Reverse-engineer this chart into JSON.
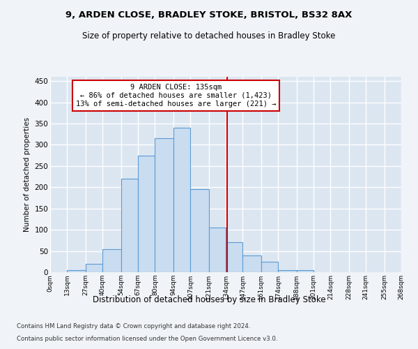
{
  "title": "9, ARDEN CLOSE, BRADLEY STOKE, BRISTOL, BS32 8AX",
  "subtitle": "Size of property relative to detached houses in Bradley Stoke",
  "xlabel": "Distribution of detached houses by size in Bradley Stoke",
  "ylabel": "Number of detached properties",
  "footnote1": "Contains HM Land Registry data © Crown copyright and database right 2024.",
  "footnote2": "Contains public sector information licensed under the Open Government Licence v3.0.",
  "annotation_line1": "9 ARDEN CLOSE: 135sqm",
  "annotation_line2": "← 86% of detached houses are smaller (1,423)",
  "annotation_line3": "13% of semi-detached houses are larger (221) →",
  "property_size": 135,
  "bin_edges": [
    0,
    13,
    27,
    40,
    54,
    67,
    80,
    94,
    107,
    121,
    134,
    147,
    161,
    174,
    188,
    201,
    214,
    228,
    241,
    255,
    268
  ],
  "bar_heights": [
    0,
    5,
    20,
    55,
    220,
    275,
    315,
    340,
    195,
    105,
    70,
    40,
    25,
    5,
    5,
    0,
    0,
    0,
    0,
    0
  ],
  "bar_color": "#c9dcf0",
  "bar_edge_color": "#5b9bd5",
  "vline_color": "#cc0000",
  "annotation_box_edgecolor": "#cc0000",
  "background_color": "#dce6f1",
  "grid_color": "#ffffff",
  "fig_bg_color": "#f0f4f8",
  "ylim": [
    0,
    460
  ],
  "yticks": [
    0,
    50,
    100,
    150,
    200,
    250,
    300,
    350,
    400,
    450
  ]
}
